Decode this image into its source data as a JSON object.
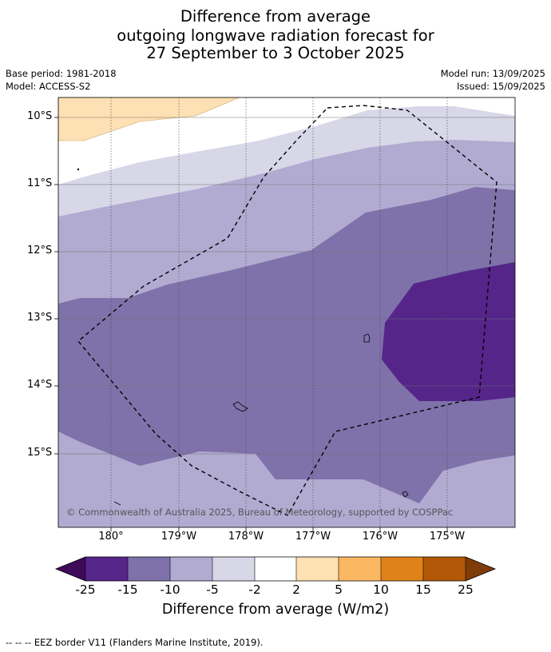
{
  "title_lines": [
    "Difference from average",
    "outgoing longwave radiation forecast for",
    "27 September to 3 October 2025"
  ],
  "meta": {
    "base_period": "Base period: 1981-2018",
    "model": "Model: ACCESS-S2",
    "model_run": "Model run: 13/09/2025",
    "issued": "Issued: 15/09/2025"
  },
  "map": {
    "lat_labels": [
      "10°S",
      "11°S",
      "12°S",
      "13°S",
      "14°S",
      "15°S"
    ],
    "lon_labels": [
      "180°",
      "179°W",
      "178°W",
      "177°W",
      "176°W",
      "175°W"
    ],
    "copyright": "© Commonwealth of Australia 2025, Bureau of Meteorology, supported by COSPPac"
  },
  "colorbar": {
    "ticks": [
      "-25",
      "-15",
      "-10",
      "-5",
      "-2",
      "2",
      "5",
      "10",
      "15",
      "25"
    ],
    "colors": [
      "#3f0a59",
      "#56258a",
      "#7f72aa",
      "#b1abd1",
      "#d7d7e8",
      "#ffffff",
      "#fde0b3",
      "#fbb862",
      "#e0821a",
      "#b35806",
      "#7f3b08"
    ],
    "label": "Difference from average (W/m2)"
  },
  "footnote": "--  --  -- EEZ border V11 (Flanders Marine Institute, 2019)."
}
